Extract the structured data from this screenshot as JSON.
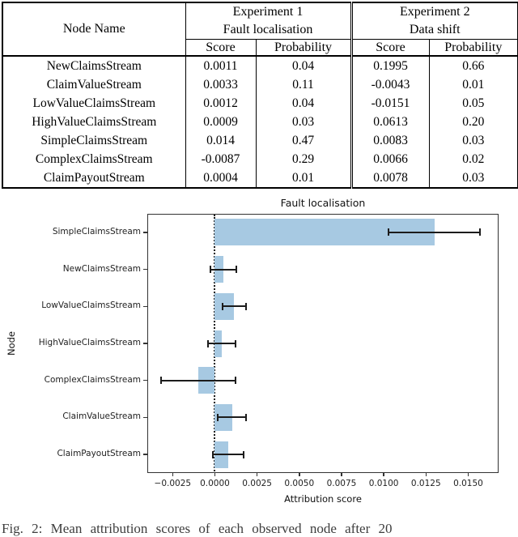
{
  "table": {
    "node_name_header": "Node Name",
    "group_headers": [
      {
        "line1": "Experiment 1",
        "line2": "Fault localisation"
      },
      {
        "line1": "Experiment 2",
        "line2": "Data shift"
      }
    ],
    "col_headers": [
      "Score",
      "Probability",
      "Score",
      "Probability"
    ],
    "rows": [
      {
        "node": "NewClaimsStream",
        "e1_score": "0.0011",
        "e1_prob": "0.04",
        "e2_score": "0.1995",
        "e2_prob": "0.66",
        "bold_cols": [
          "e2_score",
          "e2_prob"
        ]
      },
      {
        "node": "ClaimValueStream",
        "e1_score": "0.0033",
        "e1_prob": "0.11",
        "e2_score": "-0.0043",
        "e2_prob": "0.01",
        "bold_cols": []
      },
      {
        "node": "LowValueClaimsStream",
        "e1_score": "0.0012",
        "e1_prob": "0.04",
        "e2_score": "-0.0151",
        "e2_prob": "0.05",
        "bold_cols": []
      },
      {
        "node": "HighValueClaimsStream",
        "e1_score": "0.0009",
        "e1_prob": "0.03",
        "e2_score": "0.0613",
        "e2_prob": "0.20",
        "bold_cols": []
      },
      {
        "node": "SimpleClaimsStream",
        "e1_score": "0.014",
        "e1_prob": "0.47",
        "e2_score": "0.0083",
        "e2_prob": "0.03",
        "bold_cols": [
          "e1_score",
          "e1_prob"
        ]
      },
      {
        "node": "ComplexClaimsStream",
        "e1_score": "-0.0087",
        "e1_prob": "0.29",
        "e2_score": "0.0066",
        "e2_prob": "0.02",
        "bold_cols": []
      },
      {
        "node": "ClaimPayoutStream",
        "e1_score": "0.0004",
        "e1_prob": "0.01",
        "e2_score": "0.0078",
        "e2_prob": "0.03",
        "bold_cols": []
      }
    ]
  },
  "chart_data": {
    "type": "bar",
    "orientation": "horizontal",
    "title": "Fault localisation",
    "xlabel": "Attribution score",
    "ylabel": "Node",
    "categories": [
      "SimpleClaimsStream",
      "NewClaimsStream",
      "LowValueClaimsStream",
      "HighValueClaimsStream",
      "ComplexClaimsStream",
      "ClaimValueStream",
      "ClaimPayoutStream"
    ],
    "values": [
      0.013,
      0.0005,
      0.00115,
      0.0004,
      -0.001,
      0.00102,
      0.00078
    ],
    "errors": [
      0.0027,
      0.00075,
      0.0007,
      0.0008,
      0.0022,
      0.00085,
      0.0009
    ],
    "xticks": [
      -0.0025,
      0.0,
      0.0025,
      0.005,
      0.0075,
      0.01,
      0.0125,
      0.015
    ],
    "xlim": [
      -0.004,
      0.0168
    ],
    "bar_color": "#a7c9e2",
    "error_color": "#1c1c1c",
    "zero_line": "dotted",
    "grid": false,
    "legend": null
  },
  "caption": {
    "text": "Fig. 2: Mean attribution scores of each observed node after 20"
  }
}
